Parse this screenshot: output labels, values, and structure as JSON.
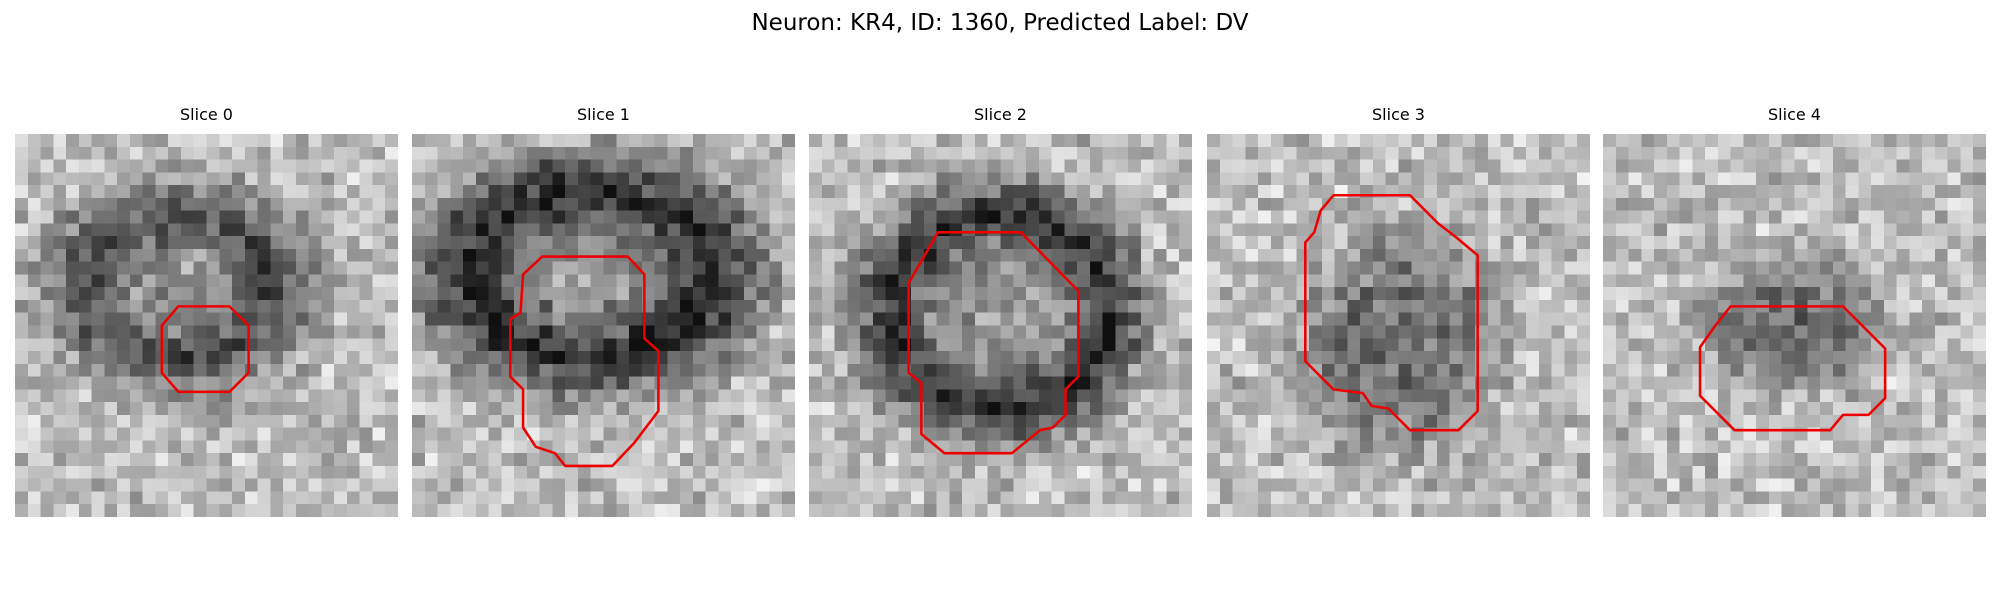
{
  "title": "Neuron: KR4, ID: 1360, Predicted Label: DV",
  "panels": [
    {
      "title": "Slice 0"
    },
    {
      "title": "Slice 1"
    },
    {
      "title": "Slice 2"
    },
    {
      "title": "Slice 3"
    },
    {
      "title": "Slice 4"
    }
  ]
}
